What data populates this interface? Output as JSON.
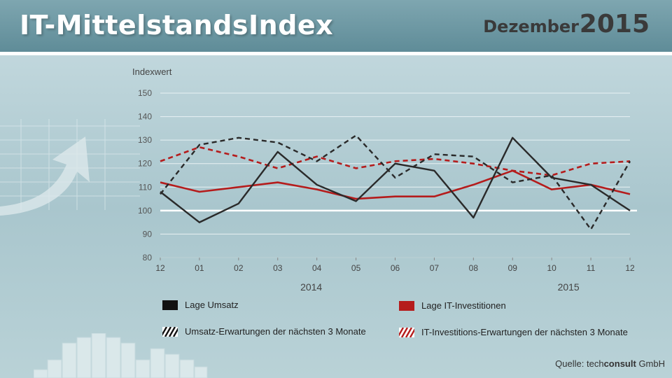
{
  "header": {
    "title": "IT-MittelstandsIndex",
    "month": "Dezember",
    "year": "2015"
  },
  "legend": {
    "items": [
      {
        "label": "Lage Umsatz",
        "color": "#2a2a2a",
        "style": "solid"
      },
      {
        "label": "Lage IT-Investitionen",
        "color": "#b51c1c",
        "style": "solid"
      },
      {
        "label": "Umsatz-Erwartungen  der nächsten 3 Monate",
        "color": "#2a2a2a",
        "style": "dashed"
      },
      {
        "label": "IT-Investitions-Erwartungen der nächsten 3 Monate",
        "color": "#b51c1c",
        "style": "dashed"
      }
    ]
  },
  "source": {
    "prefix": "Quelle:",
    "brand_light": "tech",
    "brand_bold": "consult",
    "suffix": "GmbH"
  },
  "chart_data": {
    "type": "line",
    "ylabel": "Indexwert",
    "xlabel": "",
    "ylim": [
      80,
      150
    ],
    "yticks": [
      80,
      90,
      100,
      110,
      120,
      130,
      140,
      150
    ],
    "categories": [
      "12",
      "01",
      "02",
      "03",
      "04",
      "05",
      "06",
      "07",
      "08",
      "09",
      "10",
      "11",
      "12"
    ],
    "year_labels": [
      {
        "label": "2014",
        "center_category": "04"
      },
      {
        "label": "2015",
        "center_category": "10"
      }
    ],
    "reference_line": 100,
    "grid": true,
    "legend_position": "bottom",
    "series": [
      {
        "name": "Lage Umsatz",
        "color": "#2a2a2a",
        "dash": false,
        "values": [
          108,
          95,
          103,
          125,
          111,
          104,
          120,
          117,
          97,
          131,
          114,
          111,
          100
        ]
      },
      {
        "name": "Lage IT-Investitionen",
        "color": "#b51c1c",
        "dash": false,
        "values": [
          112,
          108,
          110,
          112,
          109,
          105,
          106,
          106,
          111,
          117,
          109,
          111,
          107
        ]
      },
      {
        "name": "Umsatz-Erwartungen  der nächsten 3 Monate",
        "color": "#2a2a2a",
        "dash": true,
        "values": [
          107,
          128,
          131,
          129,
          121,
          132,
          114,
          124,
          123,
          112,
          115,
          92,
          121
        ]
      },
      {
        "name": "IT-Investitions-Erwartungen der nächsten 3 Monate",
        "color": "#b51c1c",
        "dash": true,
        "values": [
          121,
          127,
          123,
          118,
          123,
          118,
          121,
          122,
          120,
          117,
          115,
          120,
          121
        ]
      }
    ]
  }
}
